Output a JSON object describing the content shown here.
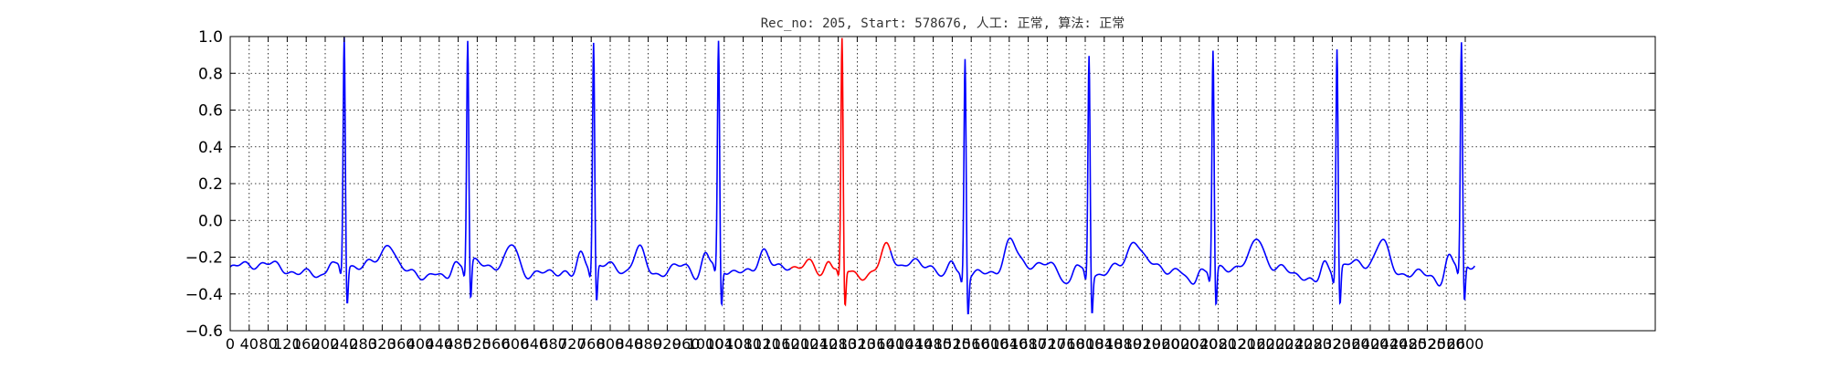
{
  "chart_data": {
    "type": "line",
    "title": "Rec_no: 205, Start: 578676, 人工: 正常, 算法: 正常",
    "xlabel": "",
    "ylabel": "",
    "xlim": [
      0,
      3000
    ],
    "ylim": [
      -0.6,
      1.0
    ],
    "grid": true,
    "grid_style": "dotted",
    "y_ticks": [
      1.0,
      0.8,
      0.6,
      0.4,
      0.2,
      0.0,
      -0.2,
      -0.4,
      -0.6
    ],
    "y_tick_labels": [
      "1.0",
      "0.8",
      "0.6",
      "0.4",
      "0.2",
      "0.0",
      "−0.2",
      "−0.4",
      "−0.6"
    ],
    "x_ticks": [
      0,
      40,
      80,
      120,
      160,
      200,
      240,
      280,
      320,
      360,
      400,
      440,
      480,
      520,
      560,
      600,
      640,
      680,
      720,
      760,
      800,
      840,
      880,
      920,
      960,
      1000,
      1040,
      1080,
      1120,
      1160,
      1200,
      1240,
      1280,
      1320,
      1360,
      1400,
      1440,
      1480,
      1520,
      1560,
      1600,
      1640,
      1680,
      1720,
      1760,
      1800,
      1840,
      1880,
      1920,
      1960,
      2000,
      2040,
      2080,
      2120,
      2160,
      2200,
      2240,
      2280,
      2320,
      2360,
      2400,
      2440,
      2480,
      2520,
      2560,
      2600
    ],
    "x_tick_labels": [
      "0",
      "40",
      "80",
      "120",
      "160",
      "200",
      "240",
      "280",
      "320",
      "360",
      "400",
      "440",
      "480",
      "520",
      "560",
      "600",
      "640",
      "680",
      "720",
      "760",
      "800",
      "840",
      "880",
      "920",
      "960",
      "1000",
      "1040",
      "1080",
      "1120",
      "1160",
      "1200",
      "1240",
      "1280",
      "1320",
      "1360",
      "1400",
      "1440",
      "1480",
      "1520",
      "1560",
      "1600",
      "1640",
      "1680",
      "1720",
      "1760",
      "1800",
      "1840",
      "1880",
      "1920",
      "1960",
      "2000",
      "2040",
      "2080",
      "2120",
      "2160",
      "2200",
      "2240",
      "2280",
      "2320",
      "2360",
      "2400",
      "2440",
      "2480",
      "2520",
      "2560",
      "2600"
    ],
    "x_end": 2620,
    "beats": [
      {
        "r": 240,
        "peak": 0.96,
        "highlight": false
      },
      {
        "r": 500,
        "peak": 0.93,
        "highlight": false
      },
      {
        "r": 765,
        "peak": 0.92,
        "highlight": false
      },
      {
        "r": 1028,
        "peak": 0.92,
        "highlight": false
      },
      {
        "r": 1288,
        "peak": 0.95,
        "highlight": true
      },
      {
        "r": 1547,
        "peak": 0.89,
        "highlight": false
      },
      {
        "r": 1808,
        "peak": 0.9,
        "highlight": false
      },
      {
        "r": 2069,
        "peak": 0.91,
        "highlight": false
      },
      {
        "r": 2330,
        "peak": 0.92,
        "highlight": false
      },
      {
        "r": 2592,
        "peak": 0.91,
        "highlight": false
      }
    ],
    "highlight_segment": {
      "start": 1180,
      "end": 1390
    },
    "series": [
      {
        "color": "#0000ff"
      },
      {
        "color": "#ff0000"
      }
    ]
  }
}
